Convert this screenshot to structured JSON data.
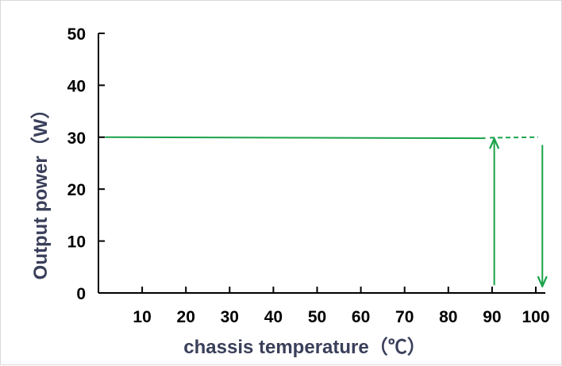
{
  "chart_data": {
    "type": "line",
    "title": "",
    "xlabel": "chassis temperature（℃）",
    "ylabel": "Output power（W）",
    "xlim": [
      0,
      100
    ],
    "ylim": [
      0,
      50
    ],
    "x_ticks": [
      "10",
      "20",
      "30",
      "40",
      "50",
      "60",
      "70",
      "80",
      "90",
      "100"
    ],
    "y_ticks": [
      "0",
      "10",
      "20",
      "30",
      "40",
      "50"
    ],
    "grid": false,
    "legend": "none",
    "series": [
      {
        "style": "solid",
        "x": [
          1.5,
          88.5
        ],
        "y": [
          30,
          29.8
        ]
      },
      {
        "style": "dashed",
        "x": [
          89.5,
          100.5
        ],
        "y": [
          29.9,
          30
        ]
      }
    ],
    "annotations": [
      {
        "type": "arrow-up",
        "x": 90.5,
        "y_from": 1.5,
        "y_to": 29.5
      },
      {
        "type": "arrow-down",
        "x": 101.5,
        "y_from": 28.5,
        "y_to": 1.5
      }
    ],
    "colors": {
      "line": "#1aa34a",
      "axis": "#000000",
      "axis_title": "#3a3f5a"
    }
  }
}
